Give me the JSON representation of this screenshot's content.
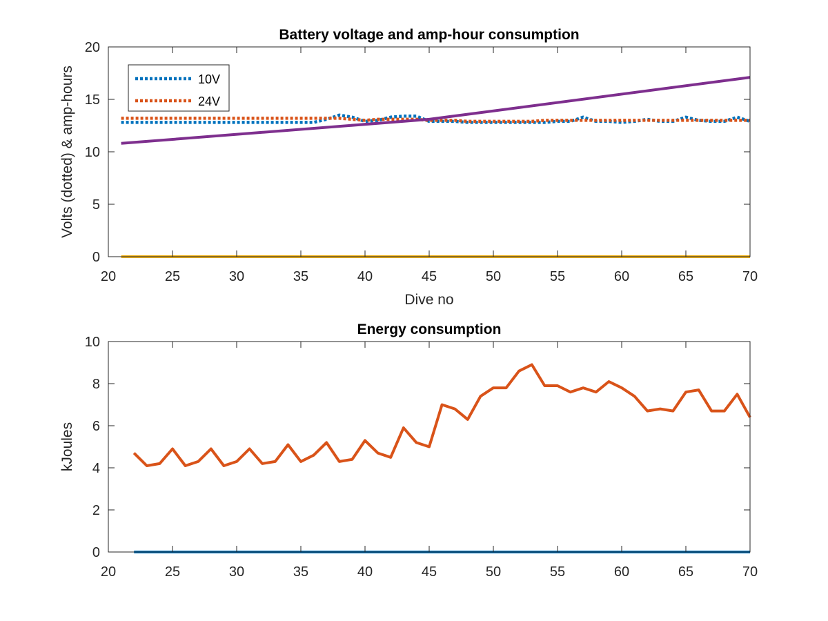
{
  "figure": {
    "background": "#ffffff"
  },
  "chart_data": [
    {
      "type": "line",
      "title": "Battery voltage and amp-hour consumption",
      "xlabel": "Dive no",
      "ylabel": "Volts (dotted) & amp-hours",
      "xlim": [
        20,
        70
      ],
      "ylim": [
        0,
        20
      ],
      "xticks": [
        20,
        25,
        30,
        35,
        40,
        45,
        50,
        55,
        60,
        65,
        70
      ],
      "yticks": [
        0,
        5,
        10,
        15,
        20
      ],
      "grid": false,
      "legend": {
        "location": "top-left",
        "entries": [
          "10V",
          "24V"
        ]
      },
      "series": [
        {
          "name": "10V",
          "color": "#0072BD",
          "style": "dotted",
          "x": [
            21,
            22,
            23,
            24,
            25,
            26,
            27,
            28,
            29,
            30,
            31,
            32,
            33,
            34,
            35,
            36,
            37,
            38,
            39,
            40,
            41,
            42,
            43,
            44,
            45,
            46,
            47,
            48,
            49,
            50,
            51,
            52,
            53,
            54,
            55,
            56,
            57,
            58,
            59,
            60,
            61,
            62,
            63,
            64,
            65,
            66,
            67,
            68,
            69,
            70
          ],
          "y": [
            12.8,
            12.8,
            12.8,
            12.8,
            12.8,
            12.8,
            12.8,
            12.8,
            12.8,
            12.8,
            12.8,
            12.8,
            12.8,
            12.8,
            12.8,
            12.8,
            13.1,
            13.5,
            13.3,
            12.9,
            13.0,
            13.3,
            13.4,
            13.4,
            12.9,
            12.9,
            12.9,
            12.8,
            12.8,
            12.8,
            12.8,
            12.8,
            12.8,
            12.8,
            12.9,
            12.9,
            13.3,
            12.9,
            12.9,
            12.8,
            12.9,
            13.1,
            12.9,
            12.9,
            13.3,
            13.0,
            12.9,
            12.9,
            13.3,
            12.9
          ]
        },
        {
          "name": "24V",
          "color": "#D95319",
          "style": "dotted",
          "x": [
            21,
            22,
            23,
            24,
            25,
            26,
            27,
            28,
            29,
            30,
            31,
            32,
            33,
            34,
            35,
            36,
            37,
            38,
            39,
            40,
            41,
            42,
            43,
            44,
            45,
            46,
            47,
            48,
            49,
            50,
            51,
            52,
            53,
            54,
            55,
            56,
            57,
            58,
            59,
            60,
            61,
            62,
            63,
            64,
            65,
            66,
            67,
            68,
            69,
            70
          ],
          "y": [
            13.2,
            13.2,
            13.2,
            13.2,
            13.2,
            13.2,
            13.2,
            13.2,
            13.2,
            13.2,
            13.2,
            13.2,
            13.2,
            13.2,
            13.2,
            13.2,
            13.2,
            13.2,
            13.1,
            13.0,
            13.1,
            13.1,
            13.1,
            13.1,
            13.0,
            13.0,
            13.0,
            12.9,
            12.9,
            12.9,
            12.9,
            12.9,
            12.9,
            13.0,
            13.0,
            13.0,
            13.0,
            13.0,
            13.0,
            13.0,
            13.0,
            13.0,
            13.0,
            13.0,
            13.0,
            13.0,
            13.0,
            13.0,
            13.0,
            13.0
          ]
        },
        {
          "color": "#7E2F8E",
          "style": "solid",
          "x": [
            21,
            45,
            70
          ],
          "y": [
            10.8,
            13.1,
            17.1
          ]
        },
        {
          "color": "#EDB120",
          "style": "solid",
          "x": [
            21,
            70
          ],
          "y": [
            0,
            0
          ]
        }
      ]
    },
    {
      "type": "line",
      "title": "Energy consumption",
      "xlabel": "",
      "ylabel": "kJoules",
      "xlim": [
        20,
        70
      ],
      "ylim": [
        0,
        10
      ],
      "xticks": [
        20,
        25,
        30,
        35,
        40,
        45,
        50,
        55,
        60,
        65,
        70
      ],
      "yticks": [
        0,
        2,
        4,
        6,
        8,
        10
      ],
      "grid": false,
      "series": [
        {
          "color": "#D95319",
          "style": "solid",
          "x": [
            22,
            23,
            24,
            25,
            26,
            27,
            28,
            29,
            30,
            31,
            32,
            33,
            34,
            35,
            36,
            37,
            38,
            39,
            40,
            41,
            42,
            43,
            44,
            45,
            46,
            47,
            48,
            49,
            50,
            51,
            52,
            53,
            54,
            55,
            56,
            57,
            58,
            59,
            60,
            61,
            62,
            63,
            64,
            65,
            66,
            67,
            68,
            69,
            70
          ],
          "y": [
            4.7,
            4.1,
            4.2,
            4.9,
            4.1,
            4.3,
            4.9,
            4.1,
            4.3,
            4.9,
            4.2,
            4.3,
            5.1,
            4.3,
            4.6,
            5.2,
            4.3,
            4.4,
            5.3,
            4.7,
            4.5,
            5.9,
            5.2,
            5.0,
            7.0,
            6.8,
            6.3,
            7.4,
            7.8,
            7.8,
            8.6,
            8.9,
            7.9,
            7.9,
            7.6,
            7.8,
            7.6,
            8.1,
            7.8,
            7.4,
            6.7,
            6.8,
            6.7,
            7.6,
            7.7,
            6.7,
            6.7,
            7.5,
            6.4
          ]
        },
        {
          "color": "#0072BD",
          "style": "solid",
          "x": [
            22,
            70
          ],
          "y": [
            0,
            0
          ]
        }
      ]
    }
  ]
}
